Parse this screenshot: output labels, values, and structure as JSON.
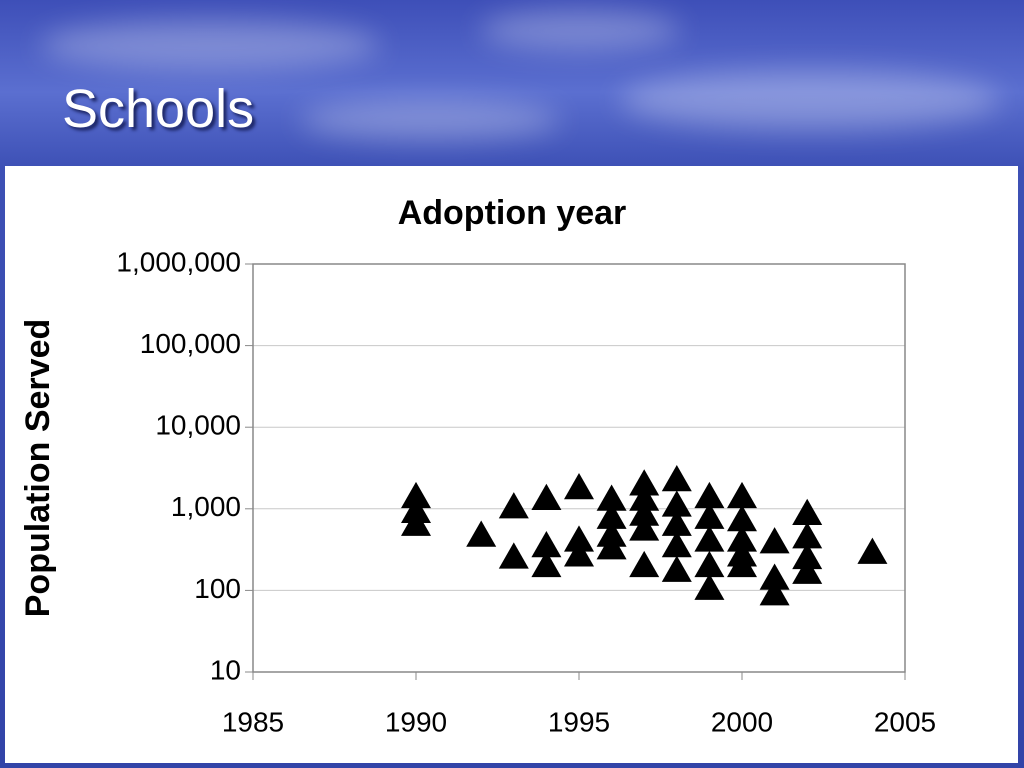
{
  "slide_title": "Schools",
  "chart_data": {
    "type": "scatter",
    "title": "Adoption year",
    "y_label": "Population Served",
    "marker": "triangle",
    "color": "#000000",
    "ylog": true,
    "grid": true,
    "x": [
      1990,
      1990,
      1990,
      1992,
      1993,
      1993,
      1994,
      1994,
      1994,
      1995,
      1995,
      1995,
      1996,
      1996,
      1996,
      1996,
      1997,
      1997,
      1997,
      1997,
      1997,
      1998,
      1998,
      1998,
      1998,
      1998,
      1999,
      1999,
      1999,
      1999,
      1999,
      2000,
      2000,
      2000,
      2000,
      2000,
      2001,
      2001,
      2001,
      2002,
      2002,
      2002,
      2002,
      2004
    ],
    "values": [
      1400,
      920,
      640,
      470,
      1050,
      254,
      1330,
      350,
      200,
      1800,
      410,
      270,
      1300,
      780,
      470,
      330,
      2000,
      1300,
      850,
      560,
      200,
      2250,
      1100,
      640,
      350,
      175,
      1400,
      780,
      410,
      200,
      105,
      1400,
      730,
      410,
      270,
      200,
      390,
      140,
      90,
      870,
      450,
      250,
      165,
      290
    ],
    "xlim": [
      1985,
      2005
    ],
    "xticks": [
      1985,
      1990,
      1995,
      2000,
      2005
    ],
    "ylim": [
      10,
      1000000
    ],
    "yticks": [
      10,
      100,
      {
        "value": 1000,
        "label": "1,000"
      },
      {
        "value": 10000,
        "label": "10,000"
      },
      {
        "value": 100000,
        "label": "100,000"
      },
      {
        "value": 1000000,
        "label": "1,000,000"
      }
    ]
  }
}
